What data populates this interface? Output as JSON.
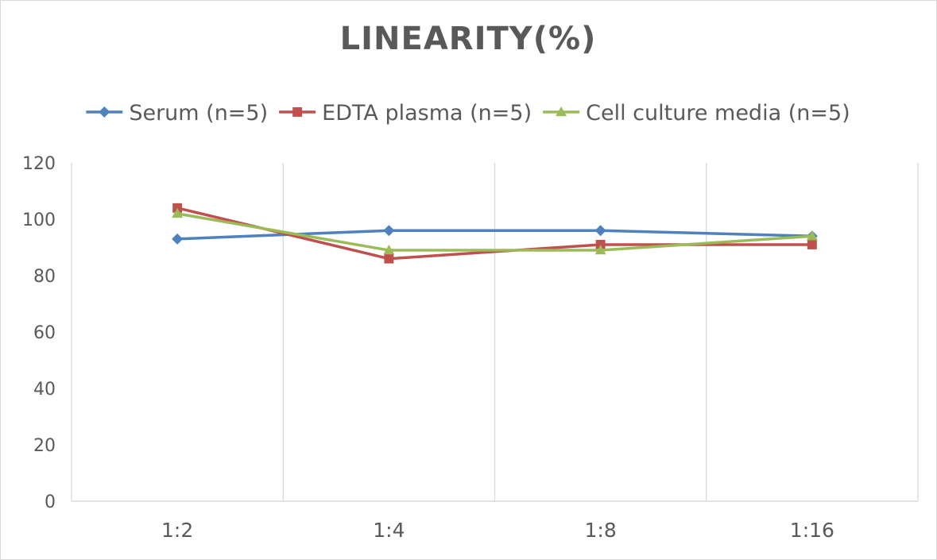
{
  "chart_data": {
    "type": "line",
    "title": "LINEARITY(%)",
    "xlabel": "",
    "ylabel": "",
    "categories": [
      "1:2",
      "1:4",
      "1:8",
      "1:16"
    ],
    "ylim": [
      0,
      120
    ],
    "yticks": [
      0,
      20,
      40,
      60,
      80,
      100,
      120
    ],
    "grid": "vertical",
    "legend": "top",
    "series": [
      {
        "name": "Serum (n=5)",
        "values": [
          93,
          96,
          96,
          94
        ],
        "color": "#4f81bd",
        "marker": "diamond"
      },
      {
        "name": "EDTA plasma (n=5)",
        "values": [
          104,
          86,
          91,
          91
        ],
        "color": "#c0504d",
        "marker": "square"
      },
      {
        "name": "Cell culture media (n=5)",
        "values": [
          102,
          89,
          89,
          94
        ],
        "color": "#9bbb59",
        "marker": "triangle"
      }
    ]
  }
}
